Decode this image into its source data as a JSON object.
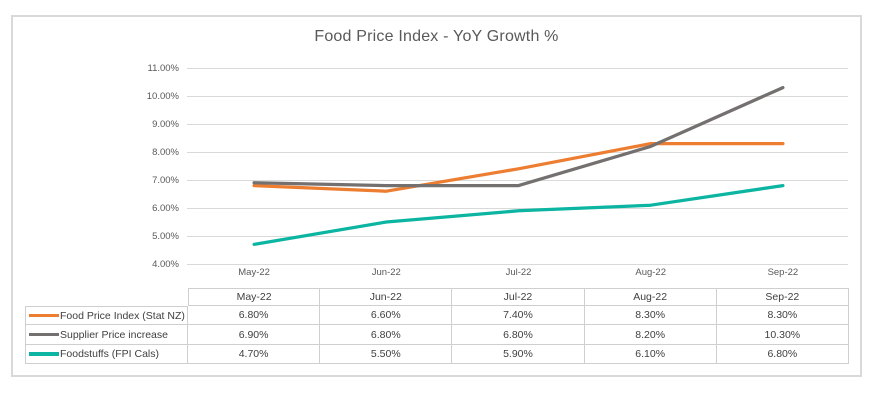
{
  "chart_data": {
    "type": "line",
    "title": "Food Price Index - YoY Growth %",
    "categories": [
      "May-22",
      "Jun-22",
      "Jul-22",
      "Aug-22",
      "Sep-22"
    ],
    "series": [
      {
        "name": "Food Price Index (Stat NZ)",
        "color": "#ED7D31",
        "values": [
          6.8,
          6.6,
          7.4,
          8.3,
          8.3
        ],
        "formatted": [
          "6.80%",
          "6.60%",
          "7.40%",
          "8.30%",
          "8.30%"
        ]
      },
      {
        "name": "Supplier Price increase",
        "color": "#757070",
        "values": [
          6.9,
          6.8,
          6.8,
          8.2,
          10.3
        ],
        "formatted": [
          "6.90%",
          "6.80%",
          "6.80%",
          "8.20%",
          "10.30%"
        ]
      },
      {
        "name": "Foodstuffs (FPI Cals)",
        "color": "#0CB5A2",
        "values": [
          4.7,
          5.5,
          5.9,
          6.1,
          6.8
        ],
        "formatted": [
          "4.70%",
          "5.50%",
          "5.90%",
          "6.10%",
          "6.80%"
        ]
      }
    ],
    "ylim": [
      4,
      11
    ],
    "ytick_step": 1,
    "ytick_labels": [
      "11.00%",
      "10.00%",
      "9.00%",
      "8.00%",
      "7.00%",
      "6.00%",
      "5.00%",
      "4.00%"
    ],
    "grid": true,
    "legend_position": "table-rows-left",
    "colors": {
      "gridline": "#D9D9D9",
      "frame_border": "#D9D9D9",
      "table_border": "#D0CECE",
      "title_text": "#595959",
      "axis_text": "#595959",
      "table_text": "#404040"
    }
  }
}
